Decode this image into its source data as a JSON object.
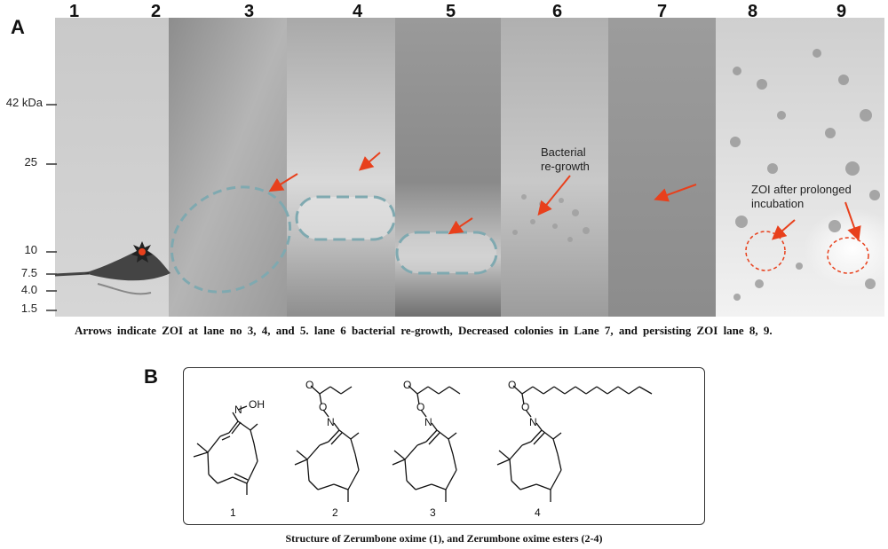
{
  "panel_a": {
    "letter": "A",
    "lanes": [
      "1",
      "2",
      "3",
      "4",
      "5",
      "6",
      "7",
      "8",
      "9"
    ],
    "mw_markers": [
      "42 kDa",
      "25",
      "10",
      "7.5",
      "4.0",
      "1.5"
    ],
    "annotations": {
      "regrowth_line1": "Bacterial",
      "regrowth_line2": "re-growth",
      "zoi_line1": "ZOI after prolonged",
      "zoi_line2": "incubation"
    },
    "caption": "Arrows indicate ZOI at lane no 3, 4, and 5. lane 6 bacterial re-growth, Decreased colonies in Lane 7, and persisting ZOI lane 8, 9.",
    "colors": {
      "arrow": "#e8401c",
      "dashed_zone": "#7fa9b0"
    }
  },
  "panel_b": {
    "letter": "B",
    "compounds": [
      "1",
      "2",
      "3",
      "4"
    ],
    "atoms": {
      "nitrogen": "N",
      "oxygen": "O",
      "hydroxyl": "OH"
    },
    "caption": "Structure of Zerumbone oxime (1), and Zerumbone oxime esters (2-4)"
  }
}
